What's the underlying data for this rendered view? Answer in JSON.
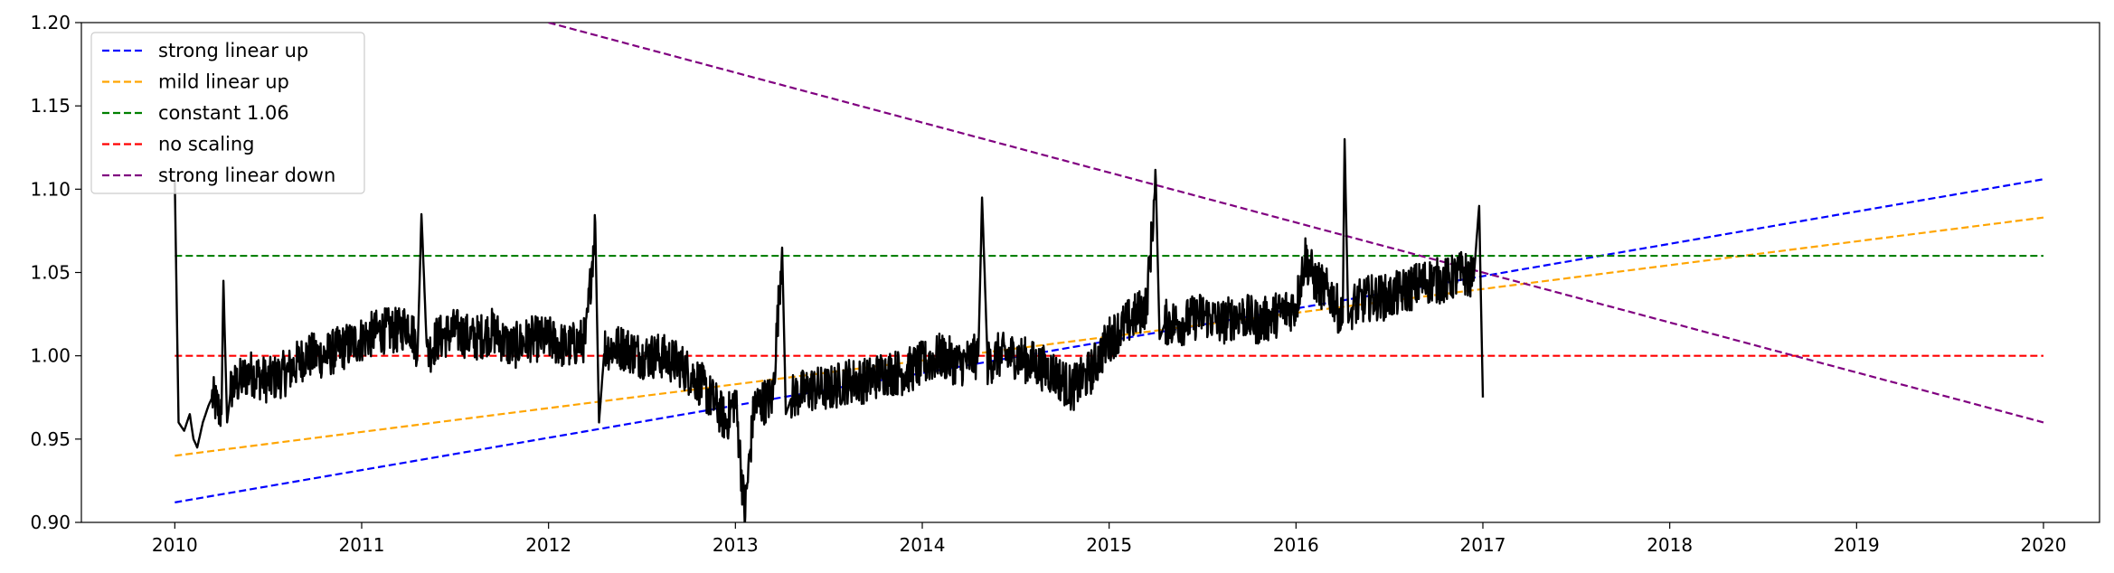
{
  "chart_data": {
    "type": "line",
    "title": "",
    "xlabel": "",
    "ylabel": "",
    "xlim": [
      2009.5,
      2020.3
    ],
    "ylim": [
      0.9,
      1.2
    ],
    "grid": false,
    "legend_position": "top-left",
    "x_ticks": [
      "2010",
      "2011",
      "2012",
      "2013",
      "2014",
      "2015",
      "2016",
      "2017",
      "2018",
      "2019",
      "2020"
    ],
    "y_ticks": [
      "0.90",
      "0.95",
      "1.00",
      "1.05",
      "1.10",
      "1.15",
      "1.20"
    ],
    "series": [
      {
        "name": "strong linear up",
        "color": "#0000ff",
        "style": "dashed",
        "x": [
          2010.0,
          2020.0
        ],
        "y": [
          0.912,
          1.106
        ]
      },
      {
        "name": "mild linear up",
        "color": "#ffa500",
        "style": "dashed",
        "x": [
          2010.0,
          2020.0
        ],
        "y": [
          0.94,
          1.083
        ]
      },
      {
        "name": "constant 1.06",
        "color": "#008000",
        "style": "dashed",
        "x": [
          2010.0,
          2020.0
        ],
        "y": [
          1.06,
          1.06
        ]
      },
      {
        "name": "no scaling",
        "color": "#ff0000",
        "style": "dashed",
        "x": [
          2010.0,
          2020.0
        ],
        "y": [
          1.0,
          1.0
        ]
      },
      {
        "name": "strong linear down",
        "color": "#800080",
        "style": "dashed",
        "x": [
          2012.0,
          2020.0
        ],
        "y": [
          1.2,
          0.96
        ]
      }
    ],
    "observed": {
      "color": "#000000",
      "x": [
        2010.0,
        2010.02,
        2010.05,
        2010.08,
        2010.1,
        2010.12,
        2010.15,
        2010.18,
        2010.2,
        2010.25,
        2010.26,
        2010.28,
        2010.3,
        2010.35,
        2010.4,
        2010.5,
        2010.6,
        2010.7,
        2010.8,
        2010.9,
        2011.0,
        2011.1,
        2011.2,
        2011.25,
        2011.3,
        2011.32,
        2011.35,
        2011.4,
        2011.5,
        2011.6,
        2011.7,
        2011.8,
        2011.9,
        2012.0,
        2012.1,
        2012.2,
        2012.25,
        2012.27,
        2012.3,
        2012.4,
        2012.5,
        2012.6,
        2012.7,
        2012.8,
        2012.9,
        2012.95,
        2013.0,
        2013.05,
        2013.1,
        2013.2,
        2013.25,
        2013.27,
        2013.3,
        2013.4,
        2013.5,
        2013.6,
        2013.7,
        2013.8,
        2013.9,
        2014.0,
        2014.1,
        2014.2,
        2014.3,
        2014.32,
        2014.35,
        2014.4,
        2014.5,
        2014.6,
        2014.7,
        2014.8,
        2014.9,
        2015.0,
        2015.1,
        2015.2,
        2015.25,
        2015.27,
        2015.3,
        2015.4,
        2015.5,
        2015.6,
        2015.7,
        2015.8,
        2015.9,
        2016.0,
        2016.05,
        2016.1,
        2016.15,
        2016.2,
        2016.25,
        2016.26,
        2016.28,
        2016.3,
        2016.4,
        2016.5,
        2016.6,
        2016.7,
        2016.8,
        2016.9,
        2016.95,
        2016.98,
        2017.0
      ],
      "y": [
        1.105,
        0.96,
        0.955,
        0.965,
        0.95,
        0.945,
        0.96,
        0.97,
        0.975,
        0.965,
        1.045,
        0.96,
        0.98,
        0.985,
        0.99,
        0.985,
        0.99,
        1.0,
        1.0,
        1.005,
        1.01,
        1.015,
        1.015,
        1.02,
        1.005,
        1.085,
        1.0,
        1.01,
        1.015,
        1.01,
        1.015,
        1.005,
        1.01,
        1.01,
        1.005,
        1.01,
        1.08,
        0.96,
        1.005,
        1.005,
        1.0,
        1.0,
        0.995,
        0.985,
        0.97,
        0.96,
        0.975,
        0.905,
        0.97,
        0.975,
        1.065,
        0.965,
        0.975,
        0.98,
        0.98,
        0.985,
        0.985,
        0.99,
        0.99,
        0.995,
        1.0,
        0.995,
        1.0,
        1.095,
        0.995,
        1.0,
        1.0,
        0.995,
        0.99,
        0.98,
        0.99,
        1.01,
        1.02,
        1.03,
        1.105,
        1.01,
        1.02,
        1.02,
        1.025,
        1.02,
        1.025,
        1.02,
        1.025,
        1.03,
        1.06,
        1.045,
        1.04,
        1.035,
        1.02,
        1.13,
        1.02,
        1.03,
        1.035,
        1.035,
        1.04,
        1.045,
        1.045,
        1.05,
        1.045,
        1.09,
        0.975
      ]
    }
  }
}
